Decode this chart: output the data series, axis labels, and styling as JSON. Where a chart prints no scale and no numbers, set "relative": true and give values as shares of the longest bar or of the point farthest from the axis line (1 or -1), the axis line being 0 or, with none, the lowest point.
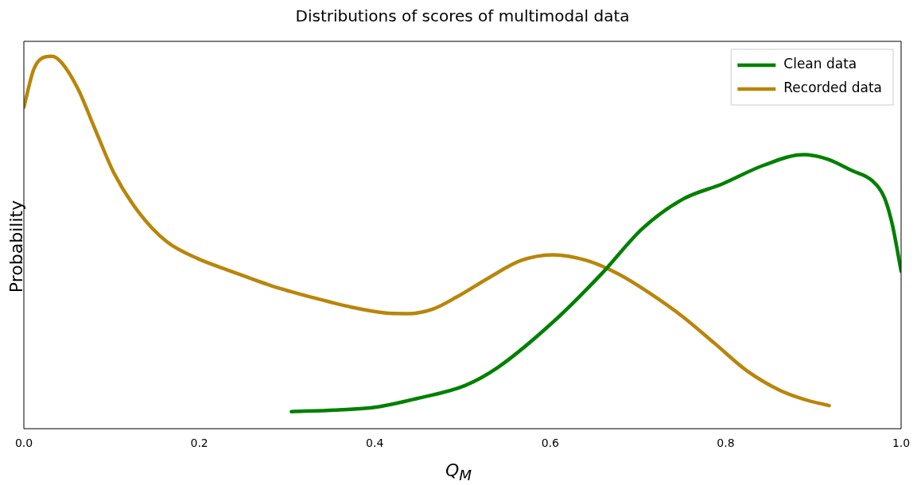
{
  "chart_data": {
    "type": "line",
    "title": "Distributions of scores of multimodal data",
    "xlabel": "Q$_{M}$",
    "ylabel": "Probability",
    "relative": true,
    "xlim": [
      0,
      1
    ],
    "xticks": [
      {
        "value": 0,
        "label": "0.0"
      },
      {
        "value": 0.2,
        "label": "0.2"
      },
      {
        "value": 0.4,
        "label": "0.4"
      },
      {
        "value": 0.6,
        "label": "0.6"
      },
      {
        "value": 0.8,
        "label": "0.8"
      },
      {
        "value": 1,
        "label": "1.0"
      }
    ],
    "legend": "top right",
    "grid": false,
    "marker": "none",
    "line_style": "solid",
    "series": [
      {
        "name": "Clean data",
        "color": "#008000",
        "x": [
          0.305,
          0.356,
          0.402,
          0.448,
          0.503,
          0.54,
          0.604,
          0.659,
          0.705,
          0.751,
          0.797,
          0.843,
          0.889,
          0.916,
          0.944,
          0.967,
          0.981,
          0.99,
          1.0
        ],
        "values": [
          0.046,
          0.05,
          0.058,
          0.081,
          0.116,
          0.164,
          0.288,
          0.417,
          0.537,
          0.616,
          0.658,
          0.707,
          0.736,
          0.724,
          0.693,
          0.666,
          0.62,
          0.548,
          0.423
        ]
      },
      {
        "name": "Recorded data",
        "color": "#b8860b",
        "x": [
          0,
          0.011,
          0.02,
          0.032,
          0.043,
          0.062,
          0.08,
          0.103,
          0.131,
          0.163,
          0.199,
          0.236,
          0.282,
          0.328,
          0.374,
          0.411,
          0.438,
          0.466,
          0.493,
          0.53,
          0.566,
          0.603,
          0.641,
          0.678,
          0.714,
          0.751,
          0.788,
          0.824,
          0.861,
          0.889,
          0.918
        ],
        "values": [
          0.863,
          0.963,
          0.994,
          1.0,
          0.983,
          0.911,
          0.811,
          0.685,
          0.581,
          0.502,
          0.456,
          0.423,
          0.384,
          0.353,
          0.326,
          0.311,
          0.309,
          0.321,
          0.353,
          0.405,
          0.451,
          0.467,
          0.452,
          0.415,
          0.363,
          0.301,
          0.228,
          0.156,
          0.104,
          0.079,
          0.062
        ]
      }
    ]
  }
}
